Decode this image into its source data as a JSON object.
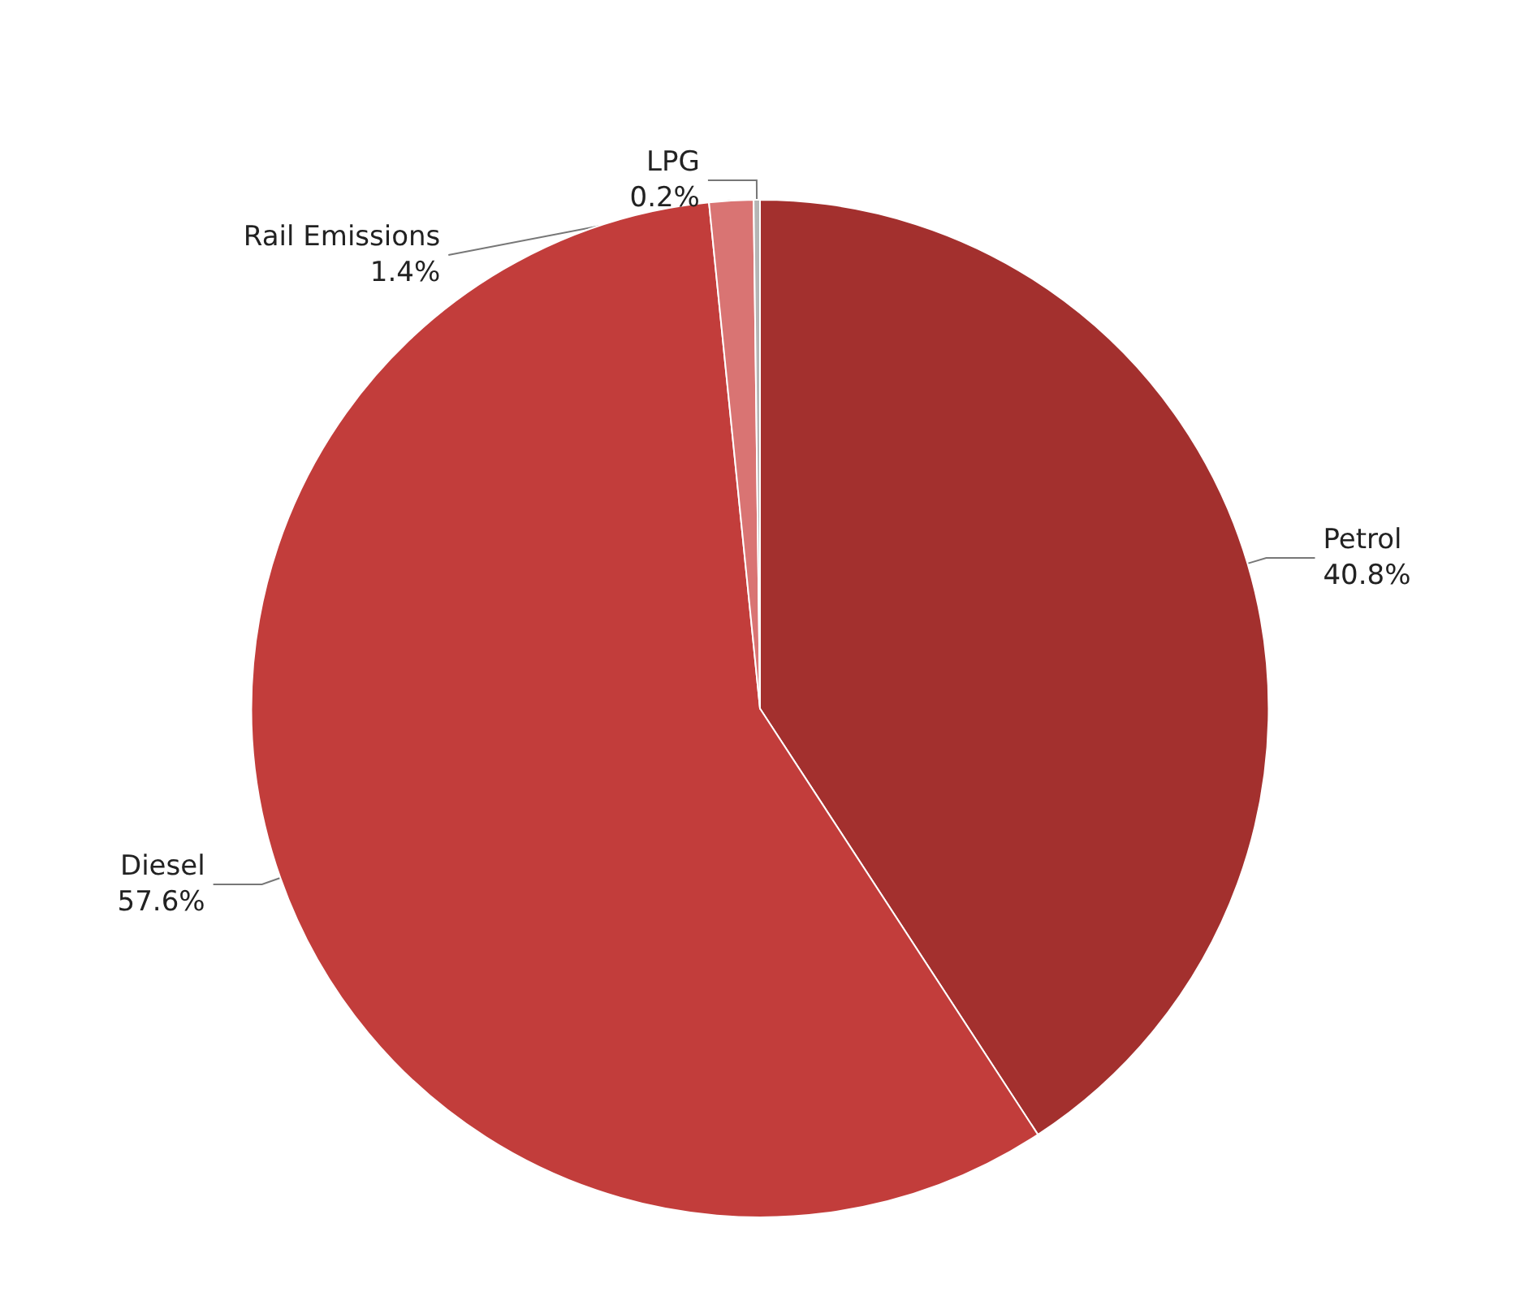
{
  "chart_data": {
    "type": "pie",
    "categories": [
      "Petrol",
      "Diesel",
      "Rail Emissions",
      "LPG"
    ],
    "values": [
      40.8,
      57.6,
      1.4,
      0.2
    ],
    "value_labels": [
      "40.8%",
      "57.6%",
      "1.4%",
      "0.2%"
    ],
    "colors": [
      "#a3302e",
      "#c23d3b",
      "#d97473",
      "#b5b5b5"
    ],
    "legend": false
  }
}
